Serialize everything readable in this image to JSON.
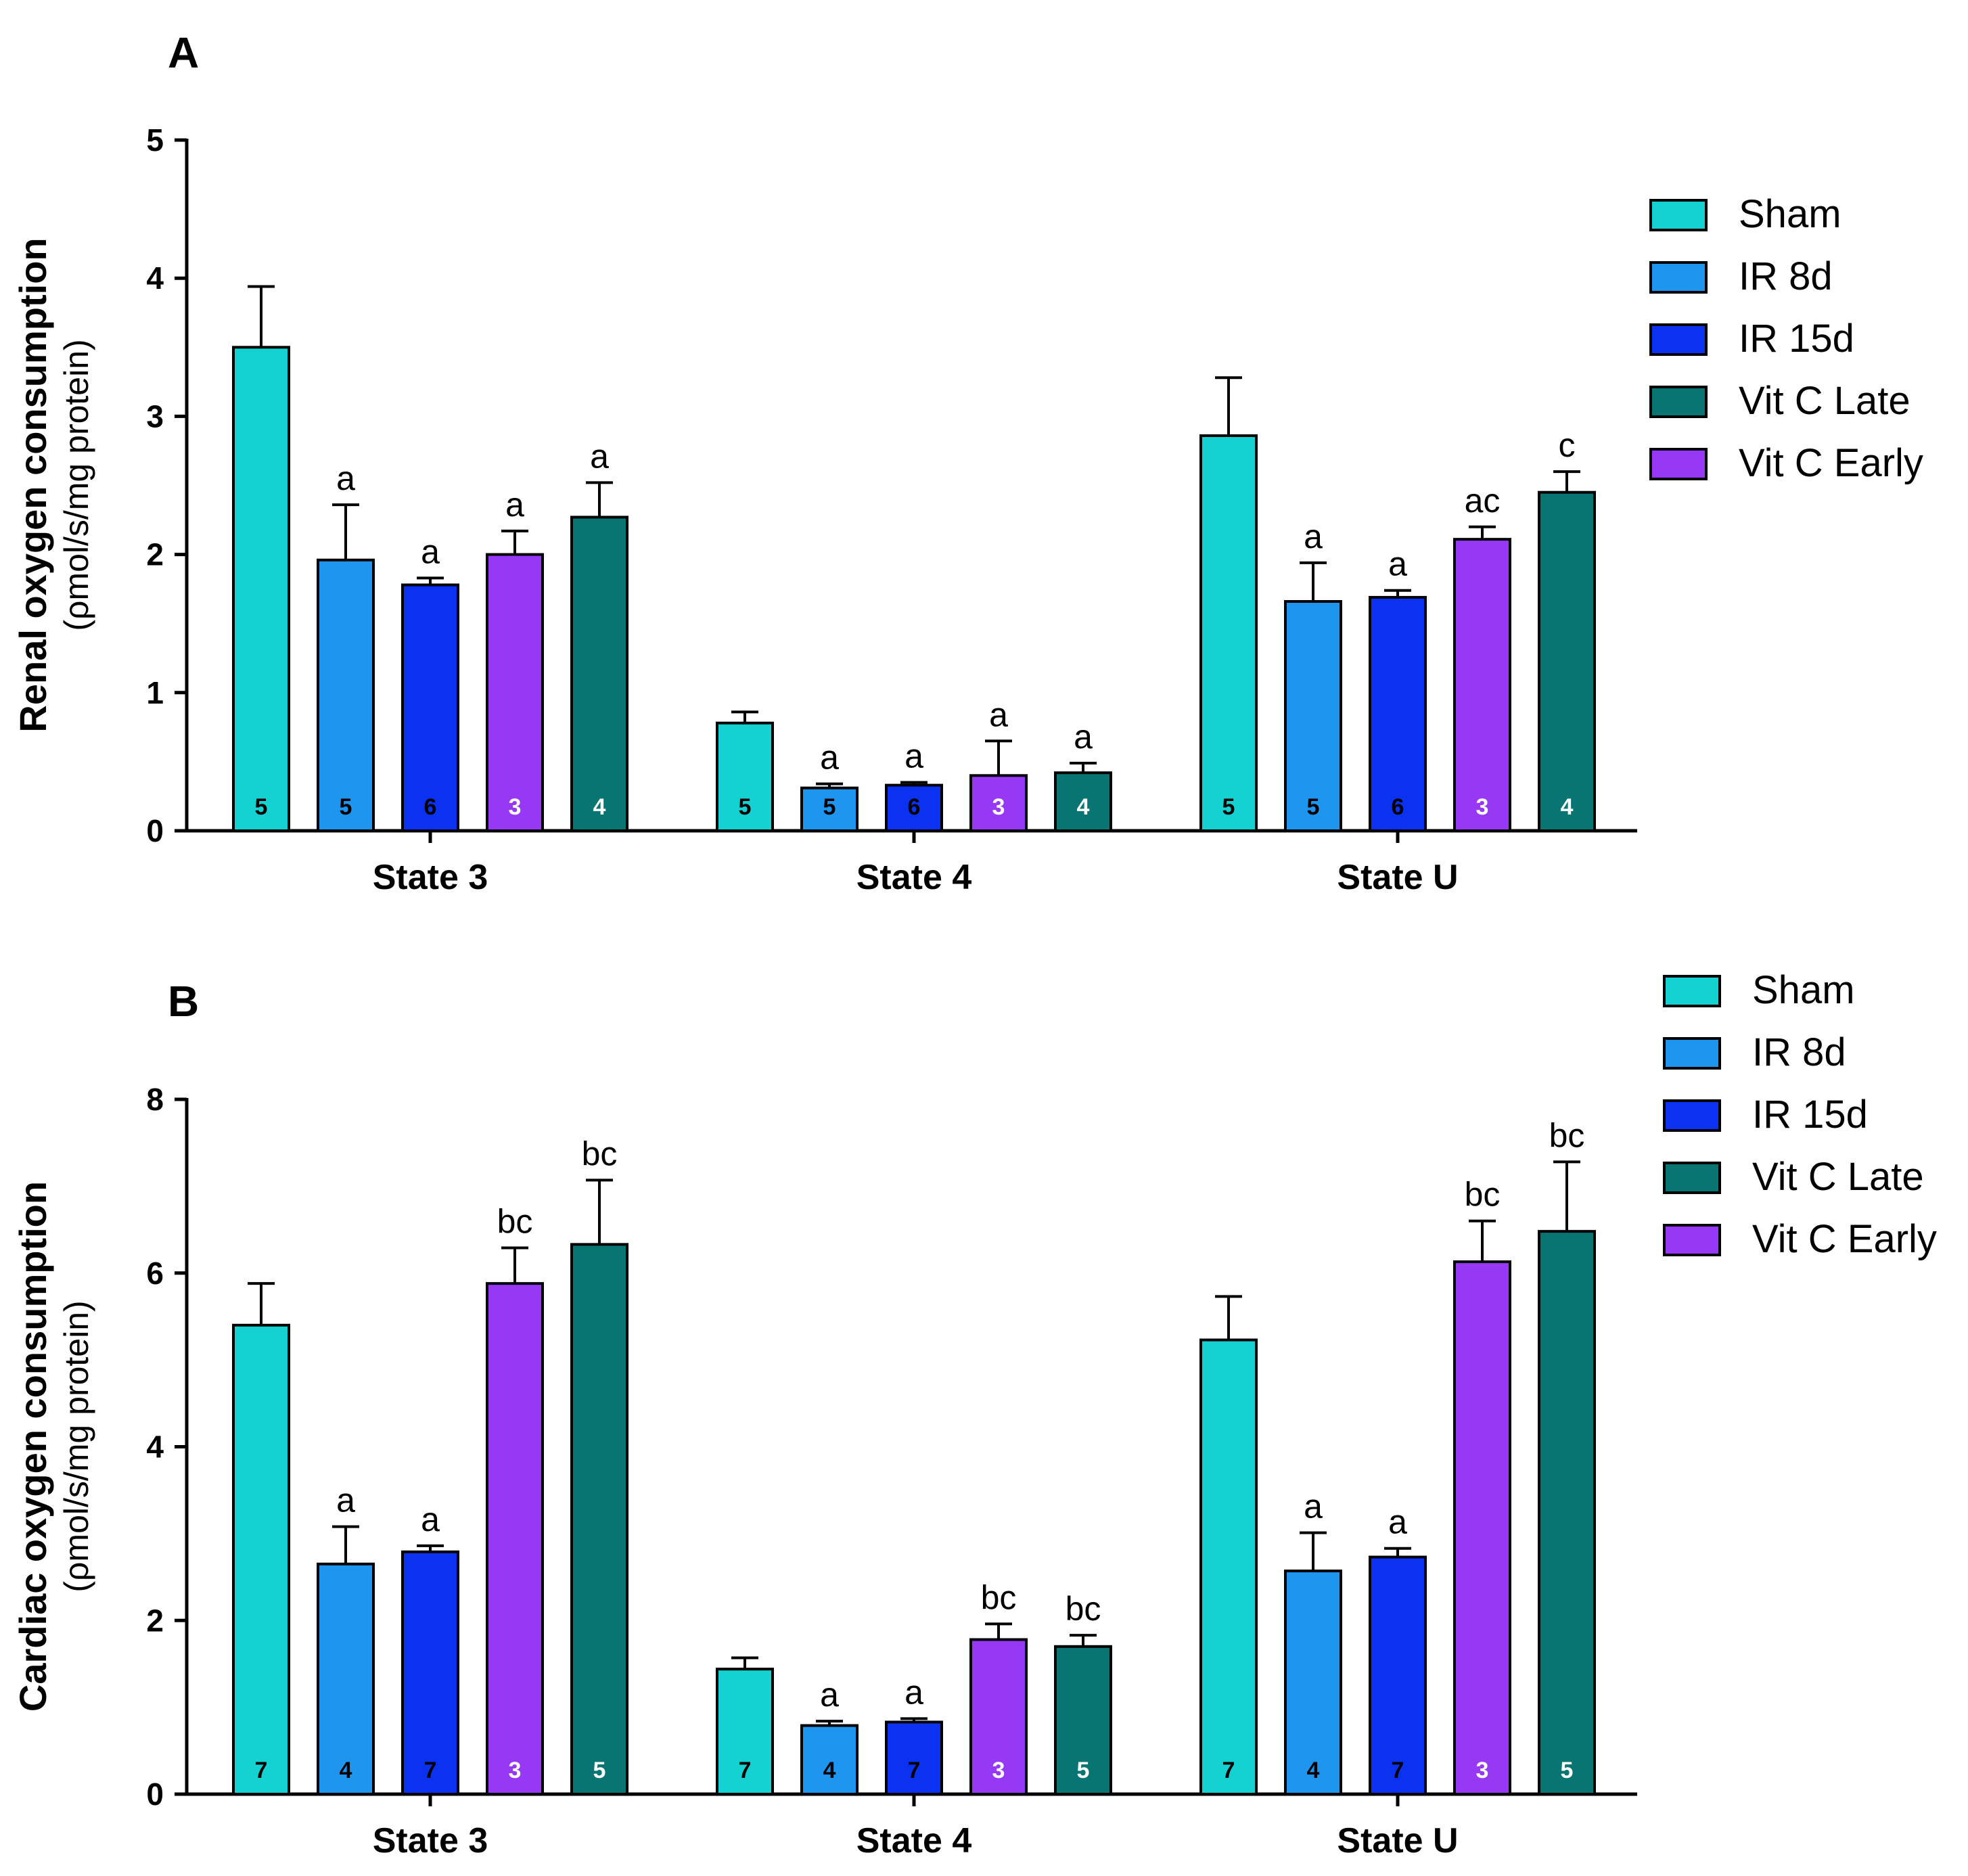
{
  "colors": {
    "Sham": "#14d2d2",
    "IR 8d": "#1e96f0",
    "IR 15d": "#0a32f0",
    "Vit C Late": "#087572",
    "Vit C Early": "#9638f5",
    "axis": "#000000"
  },
  "chart_data": [
    {
      "panel": "A",
      "type": "bar",
      "ylabel": "Renal oxygen consumption",
      "ylabel_units": "(ρmol/s/mg protein)",
      "ylim": [
        0,
        5
      ],
      "yticks": [
        0,
        1,
        2,
        3,
        4,
        5
      ],
      "categories": [
        "State 3",
        "State 4",
        "State U"
      ],
      "legend": [
        "Sham",
        "IR 8d",
        "IR 15d",
        "Vit C Late",
        "Vit C Early"
      ],
      "series": [
        {
          "name": "Sham",
          "values": [
            3.5,
            0.78,
            2.86
          ],
          "errors": [
            0.44,
            0.08,
            0.42
          ],
          "n": [
            "5",
            "5",
            "5"
          ],
          "sig": [
            "",
            "",
            ""
          ]
        },
        {
          "name": "IR 8d",
          "values": [
            1.96,
            0.31,
            1.66
          ],
          "errors": [
            0.4,
            0.03,
            0.28
          ],
          "n": [
            "5",
            "5",
            "5"
          ],
          "sig": [
            "a",
            "a",
            "a"
          ]
        },
        {
          "name": "IR 15d",
          "values": [
            1.78,
            0.33,
            1.69
          ],
          "errors": [
            0.05,
            0.02,
            0.05
          ],
          "n": [
            "6",
            "6",
            "6"
          ],
          "sig": [
            "a",
            "a",
            "a"
          ]
        },
        {
          "name": "Vit C Early",
          "values": [
            2.0,
            0.4,
            2.11
          ],
          "errors": [
            0.17,
            0.25,
            0.09
          ],
          "n": [
            "3",
            "3",
            "3"
          ],
          "sig": [
            "a",
            "a",
            "ac"
          ]
        },
        {
          "name": "Vit C Late",
          "values": [
            2.27,
            0.42,
            2.45
          ],
          "errors": [
            0.25,
            0.07,
            0.15
          ],
          "n": [
            "4",
            "4",
            "4"
          ],
          "sig": [
            "a",
            "a",
            "c"
          ]
        }
      ]
    },
    {
      "panel": "B",
      "type": "bar",
      "ylabel": "Cardiac oxygen consumption",
      "ylabel_units": "(ρmol/s/mg protein)",
      "ylim": [
        0,
        8
      ],
      "yticks": [
        0,
        2,
        4,
        6,
        8
      ],
      "categories": [
        "State 3",
        "State 4",
        "State U"
      ],
      "legend": [
        "Sham",
        "IR 8d",
        "IR 15d",
        "Vit C Late",
        "Vit C Early"
      ],
      "series": [
        {
          "name": "Sham",
          "values": [
            5.4,
            1.44,
            5.23
          ],
          "errors": [
            0.48,
            0.13,
            0.5
          ],
          "n": [
            "7",
            "7",
            "7"
          ],
          "sig": [
            "",
            "",
            ""
          ]
        },
        {
          "name": "IR 8d",
          "values": [
            2.65,
            0.79,
            2.57
          ],
          "errors": [
            0.43,
            0.05,
            0.44
          ],
          "n": [
            "4",
            "4",
            "4"
          ],
          "sig": [
            "a",
            "a",
            "a"
          ]
        },
        {
          "name": "IR 15d",
          "values": [
            2.79,
            0.83,
            2.73
          ],
          "errors": [
            0.07,
            0.04,
            0.1
          ],
          "n": [
            "7",
            "7",
            "7"
          ],
          "sig": [
            "a",
            "a",
            "a"
          ]
        },
        {
          "name": "Vit C Early",
          "values": [
            5.88,
            1.78,
            6.13
          ],
          "errors": [
            0.41,
            0.18,
            0.47
          ],
          "n": [
            "3",
            "3",
            "3"
          ],
          "sig": [
            "bc",
            "bc",
            "bc"
          ]
        },
        {
          "name": "Vit C Late",
          "values": [
            6.33,
            1.7,
            6.48
          ],
          "errors": [
            0.74,
            0.13,
            0.8
          ],
          "n": [
            "5",
            "5",
            "5"
          ],
          "sig": [
            "bc",
            "bc",
            "bc"
          ]
        }
      ]
    }
  ]
}
